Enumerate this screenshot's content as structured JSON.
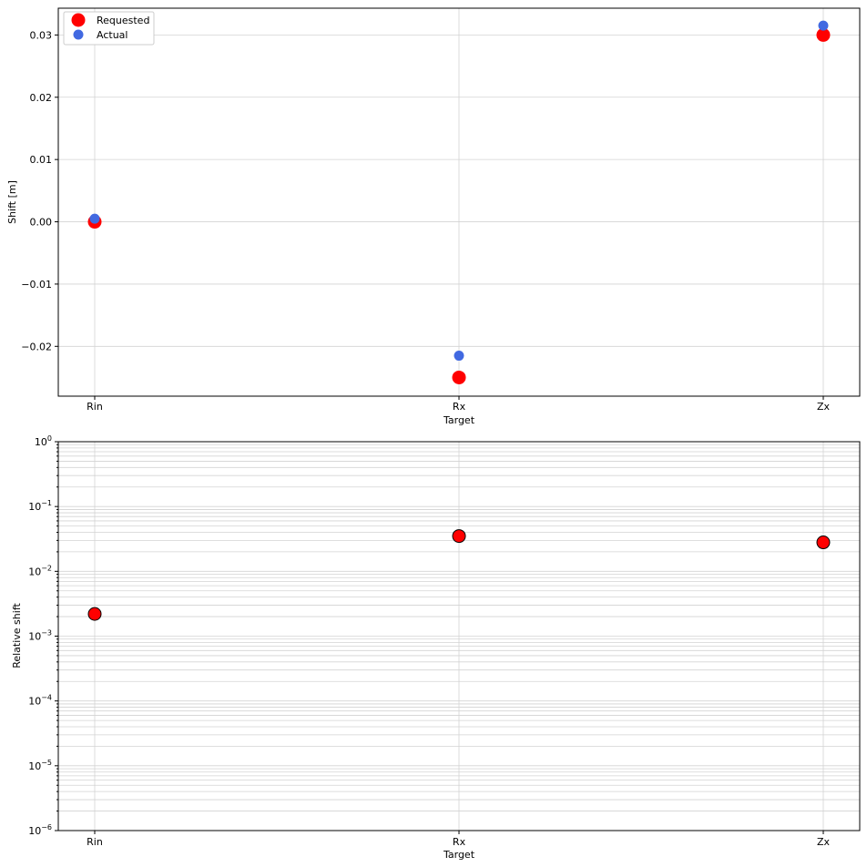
{
  "chart_data": [
    {
      "type": "scatter",
      "xlabel": "Target",
      "ylabel": "Shift [m]",
      "categories": [
        "Rin",
        "Rx",
        "Zx"
      ],
      "ylim": [
        -0.028,
        0.0343
      ],
      "yticks": [
        -0.02,
        -0.01,
        0.0,
        0.01,
        0.02,
        0.03
      ],
      "ytick_labels": [
        "−0.02",
        "−0.01",
        "0.00",
        "0.01",
        "0.02",
        "0.03"
      ],
      "grid": true,
      "legend": "top-left",
      "series": [
        {
          "name": "Requested",
          "color": "#ff0000",
          "values": [
            0.0,
            -0.025,
            0.03
          ]
        },
        {
          "name": "Actual",
          "color": "#4169e1",
          "values": [
            0.0005,
            -0.0215,
            0.0315
          ]
        }
      ]
    },
    {
      "type": "scatter",
      "xlabel": "Target",
      "ylabel": "Relative shift",
      "categories": [
        "Rin",
        "Rx",
        "Zx"
      ],
      "yscale": "log",
      "ylim": [
        1e-06,
        1
      ],
      "yticks": [
        1e-06,
        1e-05,
        0.0001,
        0.001,
        0.01,
        0.1,
        1
      ],
      "ytick_labels": [
        {
          "base": "10",
          "exp": "−6"
        },
        {
          "base": "10",
          "exp": "−5"
        },
        {
          "base": "10",
          "exp": "−4"
        },
        {
          "base": "10",
          "exp": "−3"
        },
        {
          "base": "10",
          "exp": "−2"
        },
        {
          "base": "10",
          "exp": "−1"
        },
        {
          "base": "10",
          "exp": "0"
        }
      ],
      "grid": true,
      "series": [
        {
          "color": "#ff0000",
          "edgecolor": "#000000",
          "values": [
            0.0022,
            0.035,
            0.028
          ]
        }
      ]
    }
  ]
}
